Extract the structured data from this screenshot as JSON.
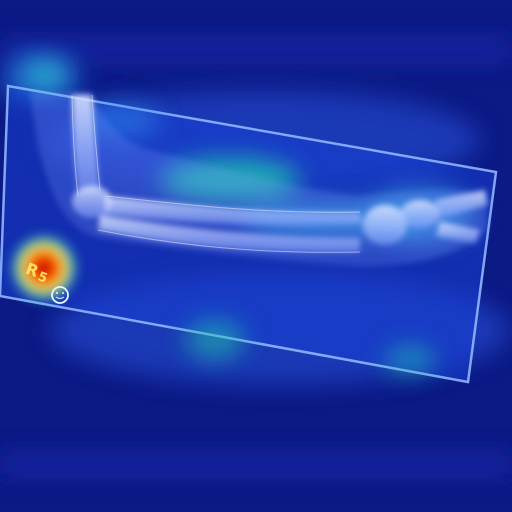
{
  "image": {
    "kind": "radiograph-with-saliency-heatmap",
    "subject": "forearm-and-elbow-lateral-view",
    "colormap": "jet",
    "colors": {
      "background": "#0c1a86",
      "film": "#1a3fd4",
      "film_border": "#8fb6ff",
      "heat_low": "#1e4be8",
      "heat_mid": "#20d0b0",
      "heat_high": "#ff1a00",
      "bone": "#c9d6ff"
    }
  },
  "marker": {
    "letters": "R",
    "number": "5",
    "circle_symbol": "☺"
  }
}
